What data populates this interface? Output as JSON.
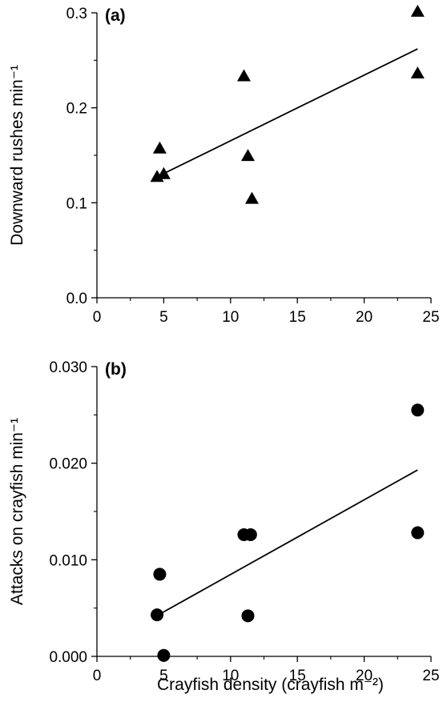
{
  "chart_data": [
    {
      "panel_label": "(a)",
      "type": "scatter",
      "marker": "triangle",
      "xlabel": "",
      "ylabel": "Downward rushes min⁻¹",
      "xlim": [
        0,
        25
      ],
      "ylim": [
        0.0,
        0.3
      ],
      "xticks": [
        0,
        5,
        10,
        15,
        20,
        25
      ],
      "xtick_labels": [
        "0",
        "5",
        "10",
        "15",
        "20",
        "25"
      ],
      "yticks": [
        0.0,
        0.1,
        0.2,
        0.3
      ],
      "ytick_labels": [
        "0.0",
        "0.1",
        "0.2",
        "0.3"
      ],
      "grid": false,
      "points": [
        {
          "x": 4.5,
          "y": 0.127
        },
        {
          "x": 4.7,
          "y": 0.157
        },
        {
          "x": 5.0,
          "y": 0.13
        },
        {
          "x": 11.0,
          "y": 0.233
        },
        {
          "x": 11.3,
          "y": 0.149
        },
        {
          "x": 11.6,
          "y": 0.104
        },
        {
          "x": 24.0,
          "y": 0.301
        },
        {
          "x": 24.0,
          "y": 0.236
        }
      ],
      "fit_line": {
        "x": [
          4.6,
          24.0
        ],
        "y": [
          0.128,
          0.262
        ]
      }
    },
    {
      "panel_label": "(b)",
      "type": "scatter",
      "marker": "circle",
      "xlabel": "Crayfish density (crayfish m⁻²)",
      "ylabel": "Attacks on crayfish min⁻¹",
      "xlim": [
        0,
        25
      ],
      "ylim": [
        0.0,
        0.03
      ],
      "xticks": [
        0,
        5,
        10,
        15,
        20,
        25
      ],
      "xtick_labels": [
        "0",
        "5",
        "10",
        "15",
        "20",
        "25"
      ],
      "yticks": [
        0.0,
        0.01,
        0.02,
        0.03
      ],
      "ytick_labels": [
        "0.000",
        "0.010",
        "0.020",
        "0.030"
      ],
      "grid": false,
      "points": [
        {
          "x": 4.5,
          "y": 0.0043
        },
        {
          "x": 4.7,
          "y": 0.0085
        },
        {
          "x": 5.0,
          "y": 0.0001
        },
        {
          "x": 11.0,
          "y": 0.0126
        },
        {
          "x": 11.5,
          "y": 0.0126
        },
        {
          "x": 11.3,
          "y": 0.0042
        },
        {
          "x": 24.0,
          "y": 0.0255
        },
        {
          "x": 24.0,
          "y": 0.0128
        }
      ],
      "fit_line": {
        "x": [
          4.6,
          24.0
        ],
        "y": [
          0.0043,
          0.0193
        ]
      }
    }
  ]
}
